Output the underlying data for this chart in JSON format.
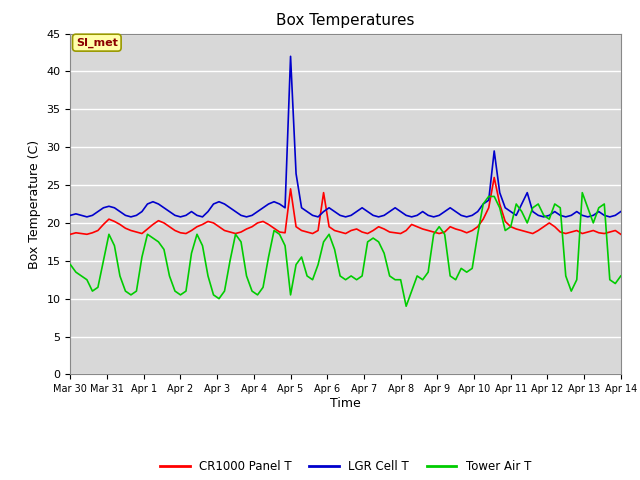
{
  "title": "Box Temperatures",
  "xlabel": "Time",
  "ylabel": "Box Temperature (C)",
  "ylim": [
    0,
    45
  ],
  "yticks": [
    0,
    5,
    10,
    15,
    20,
    25,
    30,
    35,
    40,
    45
  ],
  "background_color": "#ffffff",
  "plot_bg_color": "#d8d8d8",
  "grid_color": "#ffffff",
  "annotation_text": "SI_met",
  "annotation_color": "#8B0000",
  "annotation_bg": "#ffffaa",
  "legend_labels": [
    "CR1000 Panel T",
    "LGR Cell T",
    "Tower Air T"
  ],
  "legend_colors": [
    "#ff0000",
    "#0000cc",
    "#00cc00"
  ],
  "line_width": 1.2,
  "x_tick_labels": [
    "Mar 30",
    "Mar 31",
    "Apr 1",
    "Apr 2",
    "Apr 3",
    "Apr 4",
    "Apr 5",
    "Apr 6",
    "Apr 7",
    "Apr 8",
    "Apr 9",
    "Apr 10",
    "Apr 11",
    "Apr 12",
    "Apr 13",
    "Apr 14"
  ],
  "x_tick_positions": [
    0,
    1,
    2,
    3,
    4,
    5,
    6,
    7,
    8,
    9,
    10,
    11,
    12,
    13,
    14,
    15
  ],
  "cr1000_panel_T": [
    18.5,
    18.7,
    18.6,
    18.5,
    18.7,
    19.0,
    19.8,
    20.5,
    20.2,
    19.8,
    19.3,
    19.0,
    18.8,
    18.6,
    19.2,
    19.8,
    20.3,
    20.0,
    19.5,
    19.0,
    18.7,
    18.6,
    19.0,
    19.5,
    19.8,
    20.2,
    20.0,
    19.5,
    19.0,
    18.8,
    18.6,
    18.8,
    19.2,
    19.5,
    20.0,
    20.2,
    19.8,
    19.3,
    18.8,
    18.7,
    24.5,
    19.5,
    19.0,
    18.8,
    18.6,
    19.0,
    24.0,
    19.5,
    19.0,
    18.8,
    18.6,
    19.0,
    19.2,
    18.8,
    18.6,
    19.0,
    19.5,
    19.2,
    18.8,
    18.7,
    18.6,
    19.0,
    19.8,
    19.5,
    19.2,
    19.0,
    18.8,
    18.6,
    18.8,
    19.5,
    19.2,
    19.0,
    18.7,
    19.0,
    19.5,
    20.5,
    22.0,
    26.0,
    22.5,
    20.2,
    19.5,
    19.2,
    19.0,
    18.8,
    18.6,
    19.0,
    19.5,
    20.0,
    19.5,
    18.8,
    18.6,
    18.8,
    19.0,
    18.6,
    18.8,
    19.0,
    18.7,
    18.6,
    18.8,
    19.0,
    18.5
  ],
  "lgr_cell_T": [
    21.0,
    21.2,
    21.0,
    20.8,
    21.0,
    21.5,
    22.0,
    22.2,
    22.0,
    21.5,
    21.0,
    20.8,
    21.0,
    21.5,
    22.5,
    22.8,
    22.5,
    22.0,
    21.5,
    21.0,
    20.8,
    21.0,
    21.5,
    21.0,
    20.8,
    21.5,
    22.5,
    22.8,
    22.5,
    22.0,
    21.5,
    21.0,
    20.8,
    21.0,
    21.5,
    22.0,
    22.5,
    22.8,
    22.5,
    22.0,
    42.0,
    26.5,
    22.0,
    21.5,
    21.0,
    20.8,
    21.5,
    22.0,
    21.5,
    21.0,
    20.8,
    21.0,
    21.5,
    22.0,
    21.5,
    21.0,
    20.8,
    21.0,
    21.5,
    22.0,
    21.5,
    21.0,
    20.8,
    21.0,
    21.5,
    21.0,
    20.8,
    21.0,
    21.5,
    22.0,
    21.5,
    21.0,
    20.8,
    21.0,
    21.5,
    22.5,
    23.0,
    29.5,
    24.0,
    22.0,
    21.5,
    21.0,
    22.5,
    24.0,
    21.5,
    21.0,
    20.8,
    21.0,
    21.5,
    21.0,
    20.8,
    21.0,
    21.5,
    21.0,
    20.8,
    21.0,
    21.5,
    21.0,
    20.8,
    21.0,
    21.5
  ],
  "tower_air_T": [
    14.5,
    13.5,
    13.0,
    12.5,
    11.0,
    11.5,
    15.0,
    18.5,
    17.0,
    13.0,
    11.0,
    10.5,
    11.0,
    15.5,
    18.5,
    18.0,
    17.5,
    16.5,
    13.0,
    11.0,
    10.5,
    11.0,
    16.0,
    18.5,
    17.0,
    13.0,
    10.5,
    10.0,
    11.0,
    15.0,
    18.5,
    17.5,
    13.0,
    11.0,
    10.5,
    11.5,
    15.5,
    19.0,
    18.5,
    17.0,
    10.5,
    14.5,
    15.5,
    13.0,
    12.5,
    14.5,
    17.5,
    18.5,
    16.5,
    13.0,
    12.5,
    13.0,
    12.5,
    13.0,
    17.5,
    18.0,
    17.5,
    16.0,
    13.0,
    12.5,
    12.5,
    9.0,
    11.0,
    13.0,
    12.5,
    13.5,
    18.5,
    19.5,
    18.5,
    13.0,
    12.5,
    14.0,
    13.5,
    14.0,
    18.5,
    22.5,
    23.5,
    23.5,
    22.0,
    19.0,
    19.5,
    22.5,
    21.5,
    20.0,
    22.0,
    22.5,
    21.0,
    20.5,
    22.5,
    22.0,
    13.0,
    11.0,
    12.5,
    24.0,
    22.0,
    20.0,
    22.0,
    22.5,
    12.5,
    12.0,
    13.0
  ]
}
